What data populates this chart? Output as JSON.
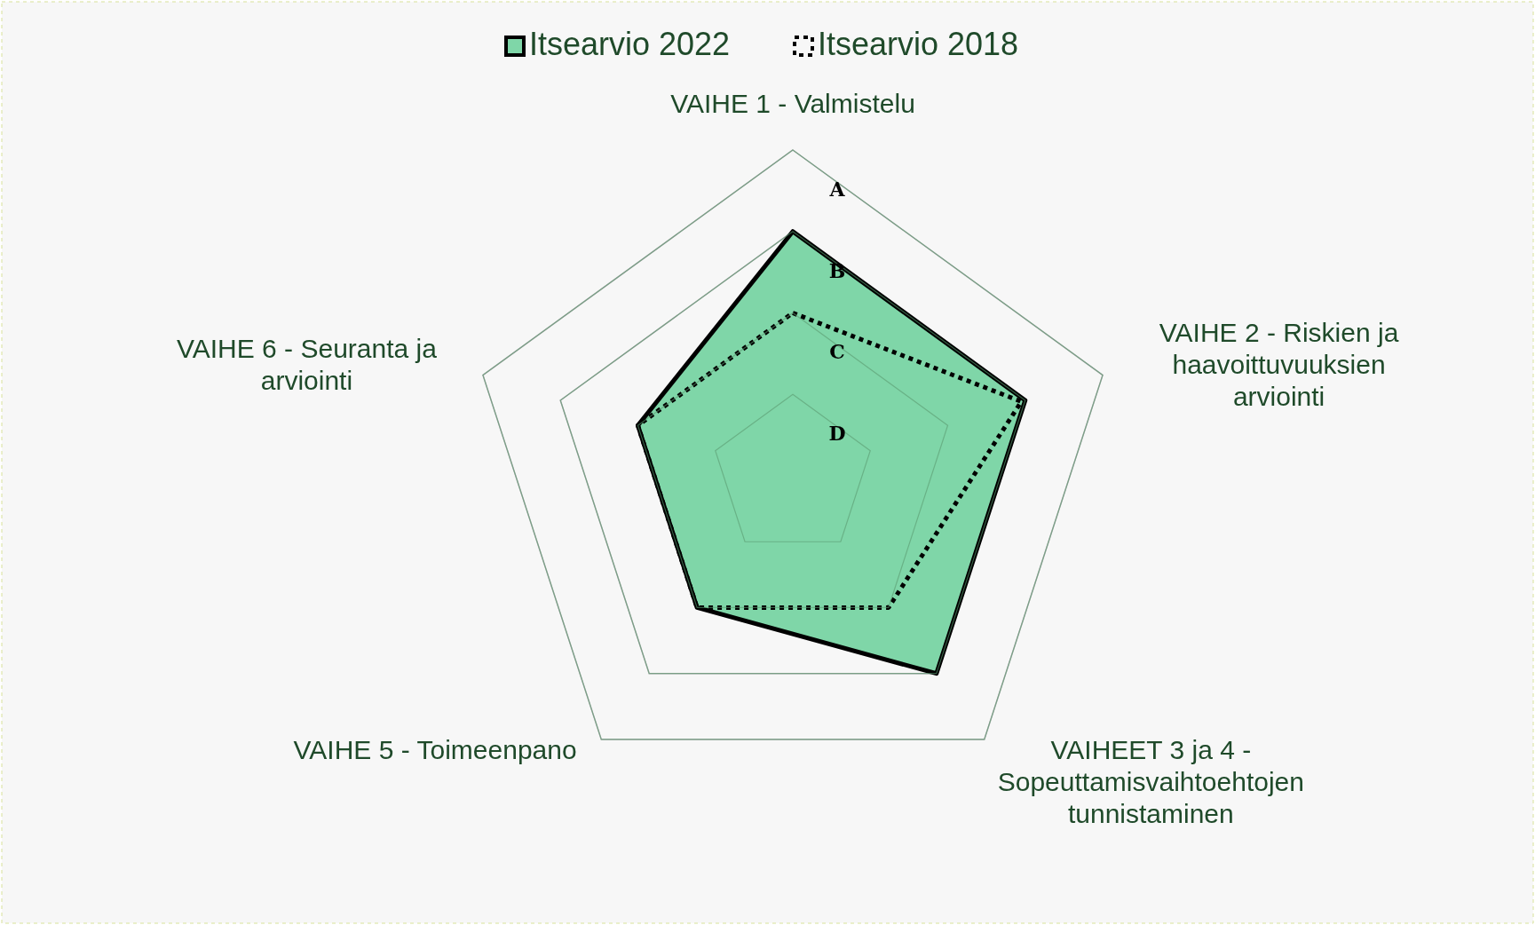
{
  "chart_data": {
    "type": "radar",
    "categories": [
      "VAIHE 1 - Valmistelu",
      "VAIHE 2 - Riskien ja haavoittuvuuksien arviointi",
      "VAIHEET 3 ja 4 - Sopeuttamisvaihtoehtojen tunnistaminen",
      "VAIHE 5 - Toimeenpano",
      "VAIHE 6 - Seuranta ja arviointi"
    ],
    "series": [
      {
        "name": "Itsearvio 2022",
        "color": "#7fd6a8",
        "line_style": "solid",
        "values": [
          3,
          3,
          3,
          2,
          2
        ]
      },
      {
        "name": "Itsearvio 2018",
        "color": "#000000",
        "line_style": "dotted",
        "values": [
          2,
          2.95,
          2,
          2,
          2
        ]
      }
    ],
    "ylim": [
      0,
      4
    ],
    "yticks": [
      {
        "value": 0.5,
        "label": "D"
      },
      {
        "value": 1.5,
        "label": "C"
      },
      {
        "value": 2.5,
        "label": "B"
      },
      {
        "value": 3.5,
        "label": "A"
      }
    ],
    "grid": true,
    "legend": "top"
  }
}
